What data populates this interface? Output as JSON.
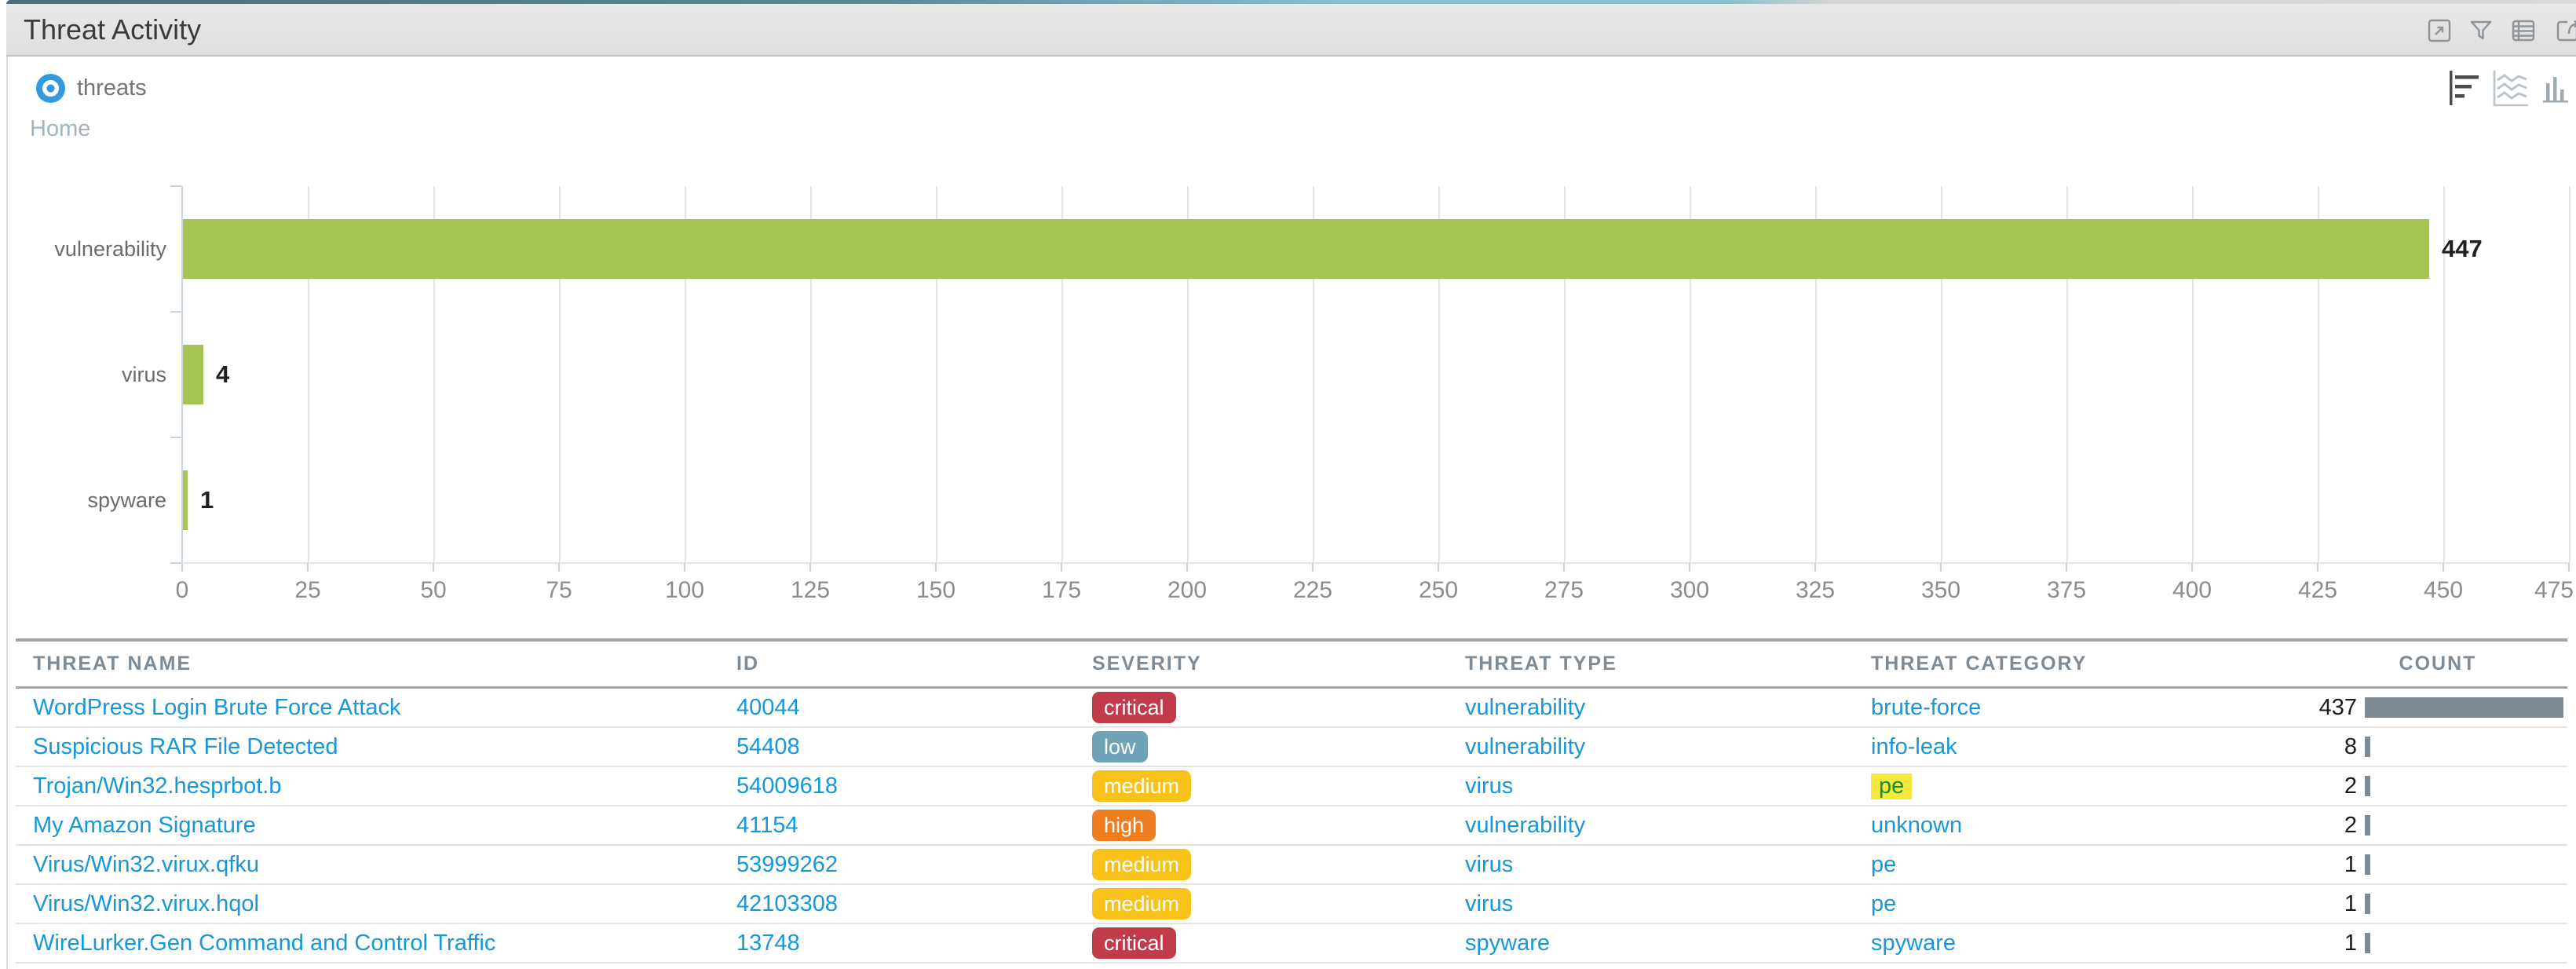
{
  "widget": {
    "title": "Threat Activity",
    "titlebar_icons": [
      {
        "name": "expand-icon"
      },
      {
        "name": "filter-icon"
      },
      {
        "name": "table-view-icon"
      },
      {
        "name": "export-icon"
      }
    ]
  },
  "controls": {
    "source_radio_label": "threats",
    "source_radio_selected": true,
    "breadcrumb_home": "Home",
    "chart_type_icons": [
      {
        "name": "horizontal-bar-chart-icon",
        "active": true
      },
      {
        "name": "area-chart-icon",
        "active": false
      },
      {
        "name": "column-chart-icon",
        "active": false
      }
    ]
  },
  "chart_data": {
    "type": "bar",
    "orientation": "horizontal",
    "title": "",
    "xlabel": "",
    "ylabel": "",
    "categories": [
      "vulnerability",
      "virus",
      "spyware"
    ],
    "values": [
      447,
      4,
      1
    ],
    "bar_labels": [
      "447",
      "4",
      "1"
    ],
    "xlim": [
      0,
      475
    ],
    "x_ticks": [
      0,
      25,
      50,
      75,
      100,
      125,
      150,
      175,
      200,
      225,
      250,
      275,
      300,
      325,
      350,
      375,
      400,
      425,
      450,
      475
    ],
    "grid": true,
    "legend_position": "none",
    "bar_color": "#a5c454"
  },
  "table": {
    "columns": [
      "THREAT NAME",
      "ID",
      "SEVERITY",
      "THREAT TYPE",
      "THREAT CATEGORY",
      "COUNT"
    ],
    "max_count": 437,
    "rows": [
      {
        "threat_name": "WordPress Login Brute Force Attack",
        "id": "40044",
        "severity": "critical",
        "threat_type": "vulnerability",
        "threat_category": "brute-force",
        "category_highlighted": false,
        "count": 437
      },
      {
        "threat_name": "Suspicious RAR File Detected",
        "id": "54408",
        "severity": "low",
        "threat_type": "vulnerability",
        "threat_category": "info-leak",
        "category_highlighted": false,
        "count": 8
      },
      {
        "threat_name": "Trojan/Win32.hesprbot.b",
        "id": "54009618",
        "severity": "medium",
        "threat_type": "virus",
        "threat_category": "pe",
        "category_highlighted": true,
        "count": 2
      },
      {
        "threat_name": "My Amazon Signature",
        "id": "41154",
        "severity": "high",
        "threat_type": "vulnerability",
        "threat_category": "unknown",
        "category_highlighted": false,
        "count": 2
      },
      {
        "threat_name": "Virus/Win32.virux.qfku",
        "id": "53999262",
        "severity": "medium",
        "threat_type": "virus",
        "threat_category": "pe",
        "category_highlighted": false,
        "count": 1
      },
      {
        "threat_name": "Virus/Win32.virux.hqol",
        "id": "42103308",
        "severity": "medium",
        "threat_type": "virus",
        "threat_category": "pe",
        "category_highlighted": false,
        "count": 1
      },
      {
        "threat_name": "WireLurker.Gen Command and Control Traffic",
        "id": "13748",
        "severity": "critical",
        "threat_type": "spyware",
        "threat_category": "spyware",
        "category_highlighted": false,
        "count": 1
      }
    ]
  },
  "colors": {
    "link": "#1897d8",
    "bar_green": "#a5c454",
    "count_bar": "#7d8a93",
    "severity": {
      "critical": "#c13b4b",
      "high": "#ee7e20",
      "medium": "#f9c21a",
      "low": "#6fa3b7"
    },
    "category_highlight_bg": "#f5e93e",
    "category_highlight_text": "#12903f",
    "titlebar_bg": "#e4e4e4",
    "grid_line": "#e3e3e3",
    "axis_line": "#c7d6e1"
  }
}
